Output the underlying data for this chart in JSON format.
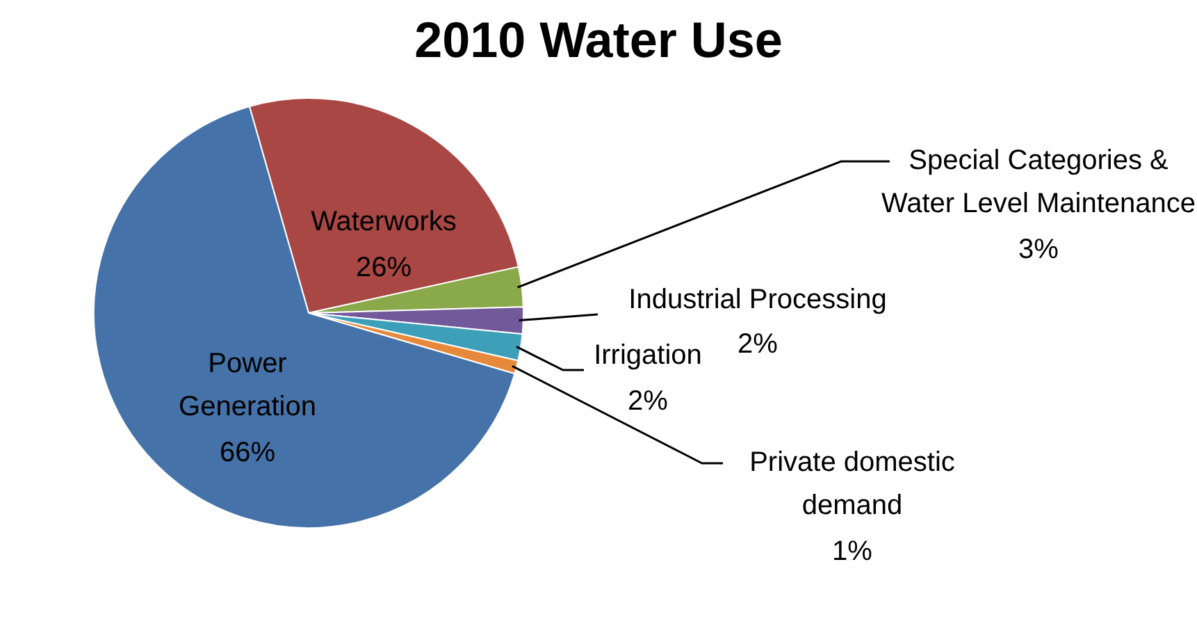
{
  "chart_data": {
    "type": "pie",
    "title": "2010 Water Use",
    "categories": [
      "Waterworks",
      "Special Categories & Water Level Maintenance",
      "Industrial Processing",
      "Irrigation",
      "Private domestic demand",
      "Power Generation"
    ],
    "values": [
      26,
      3,
      2,
      2,
      1,
      66
    ],
    "colors": [
      "#a94744",
      "#8aa94a",
      "#72599a",
      "#3ea0b8",
      "#e6893a",
      "#4572a8"
    ],
    "value_labels": [
      "26%",
      "3%",
      "2%",
      "2%",
      "1%",
      "66%"
    ],
    "legend": false
  }
}
